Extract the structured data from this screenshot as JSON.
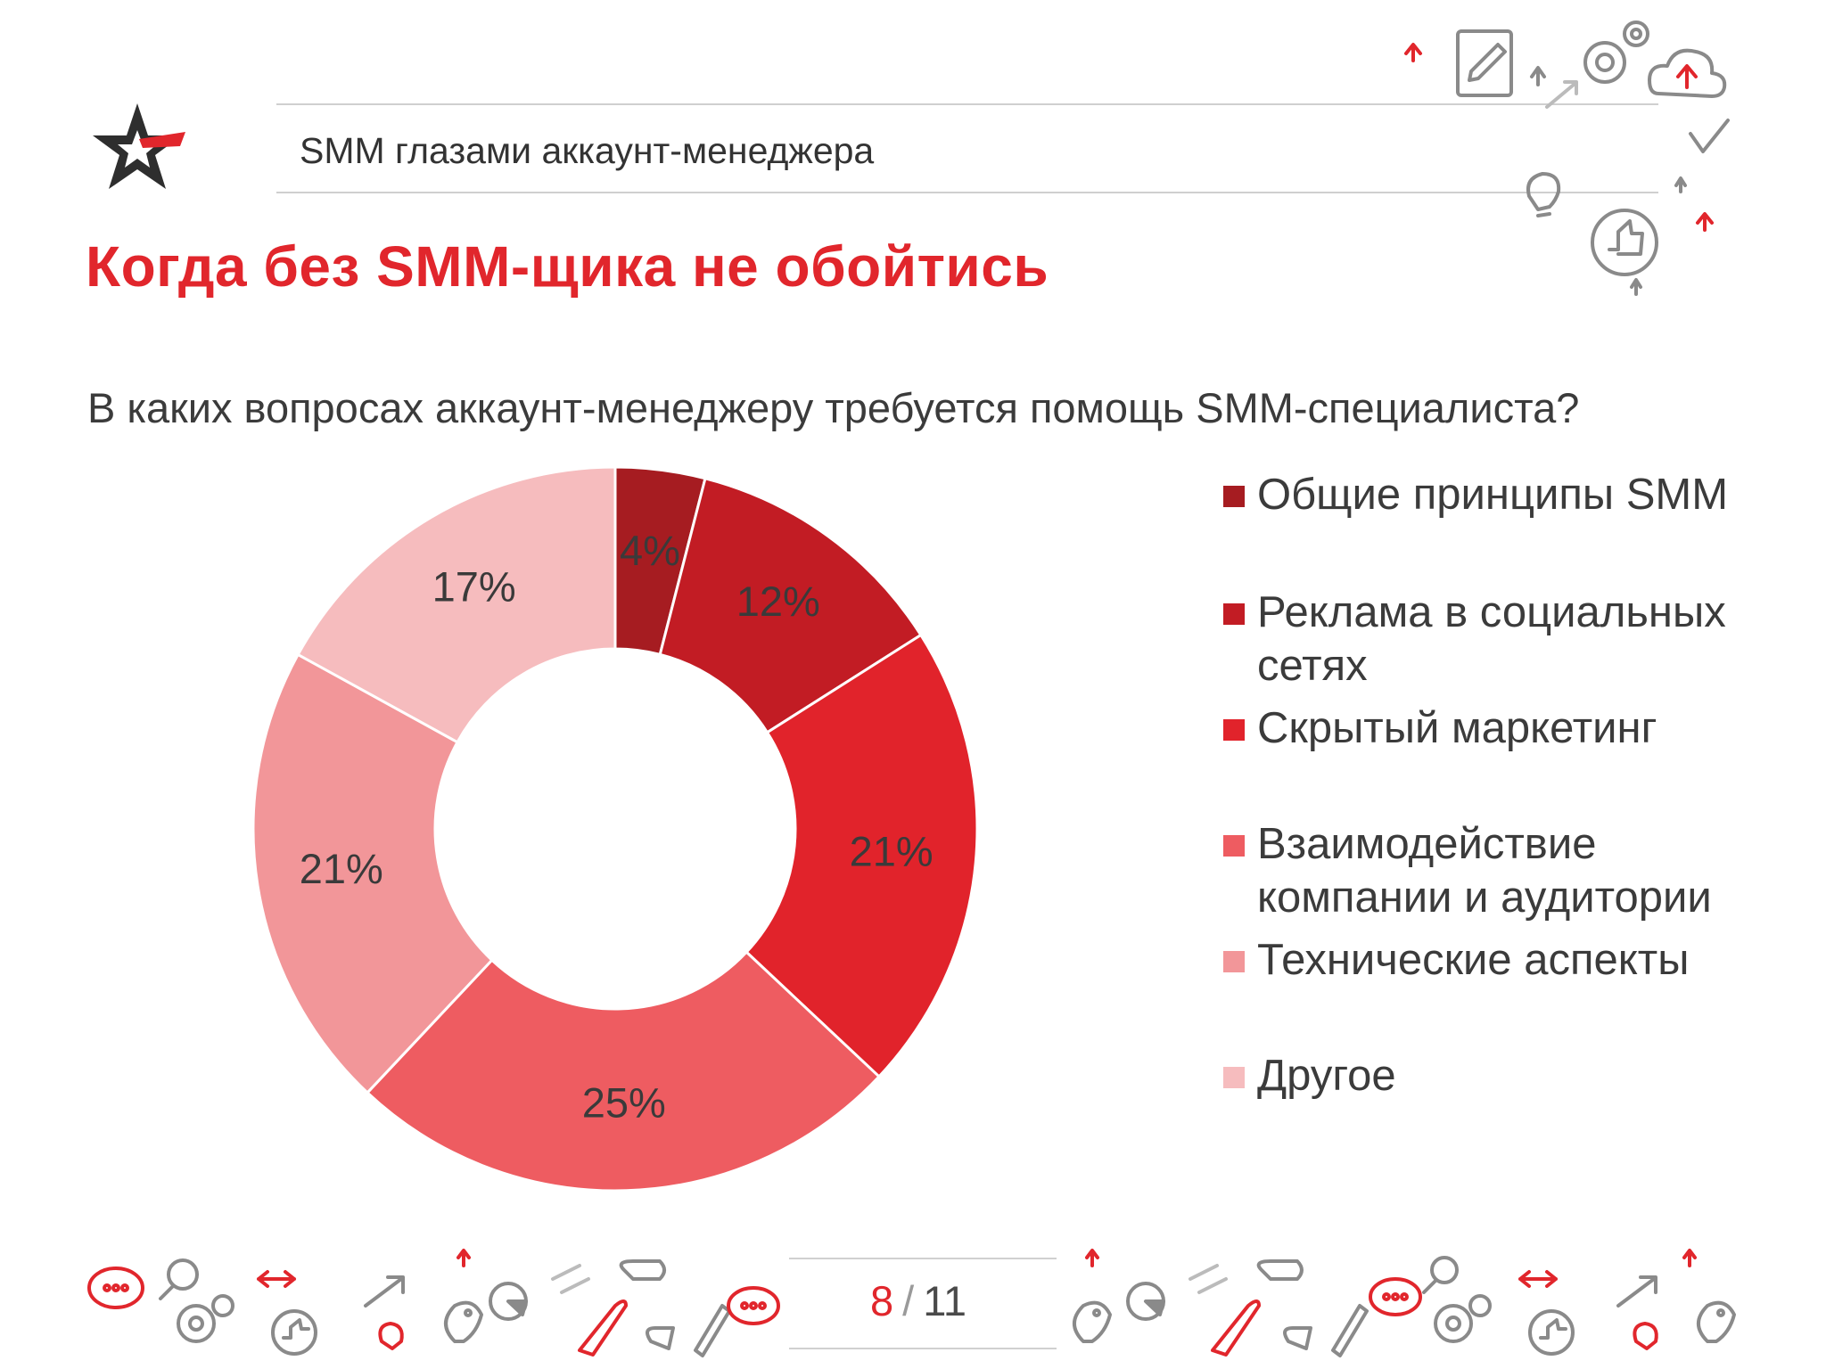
{
  "header": {
    "breadcrumb": "SMM глазами аккаунт-менеджера"
  },
  "title": "Когда без SMM-щика не обойтись",
  "question": "В каких вопросах аккаунт-менеджеру требуется помощь SMM-специалиста?",
  "pager": {
    "current": "8",
    "separator": "/",
    "total": "11"
  },
  "icons": [
    "star-logo-icon",
    "pencil-document-icon",
    "gears-icon",
    "cloud-upload-icon",
    "checkmark-icon",
    "lightbulb-icon",
    "thumbs-up-icon",
    "arrow-up-icon",
    "chat-bubble-icon",
    "magnifier-icon",
    "bird-icon",
    "rocket-icon"
  ],
  "colors": {
    "accent": "#e1262c",
    "slice_colors": [
      "#a61c21",
      "#c21c24",
      "#e1232b",
      "#ee5c61",
      "#f29699",
      "#f6bcbe"
    ]
  },
  "chart_data": {
    "type": "pie",
    "donut": true,
    "categories": [
      "Общие принципы SMM",
      "Реклама в социальных сетях",
      "Скрытый маркетинг",
      "Взаимодействие компании и аудитории",
      "Технические аспекты",
      "Другое"
    ],
    "values": [
      4,
      12,
      21,
      25,
      21,
      17
    ],
    "data_labels": [
      "4%",
      "12%",
      "21%",
      "25%",
      "21%",
      "17%"
    ],
    "legend_lines": [
      [
        "Общие принципы SMM"
      ],
      [
        "Реклама в социальных",
        "сетях"
      ],
      [
        "Скрытый маркетинг"
      ],
      [
        "Взаимодействие",
        "компании и аудитории"
      ],
      [
        "Технические аспекты"
      ],
      [
        "Другое"
      ]
    ],
    "legend_position": "right",
    "start_angle": "12 o'clock",
    "direction": "clockwise"
  }
}
